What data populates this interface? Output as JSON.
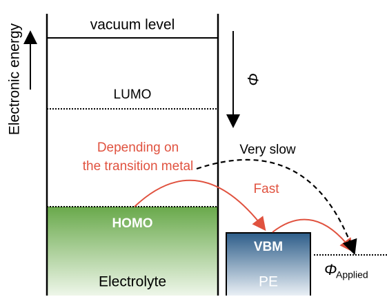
{
  "axis_label": "Electronic energy",
  "levels": {
    "vacuum": "vacuum level",
    "lumo": "LUMO",
    "homo": "HOMO",
    "vbm": "VBM"
  },
  "phi": "Φ",
  "phi_applied": {
    "symbol": "Φ",
    "subscript": "Applied"
  },
  "regions": {
    "electrolyte": "Electrolyte",
    "pe": "PE"
  },
  "annotations": {
    "depending_1": "Depending on",
    "depending_2": "the transition metal",
    "fast": "Fast",
    "very_slow": "Very slow"
  }
}
